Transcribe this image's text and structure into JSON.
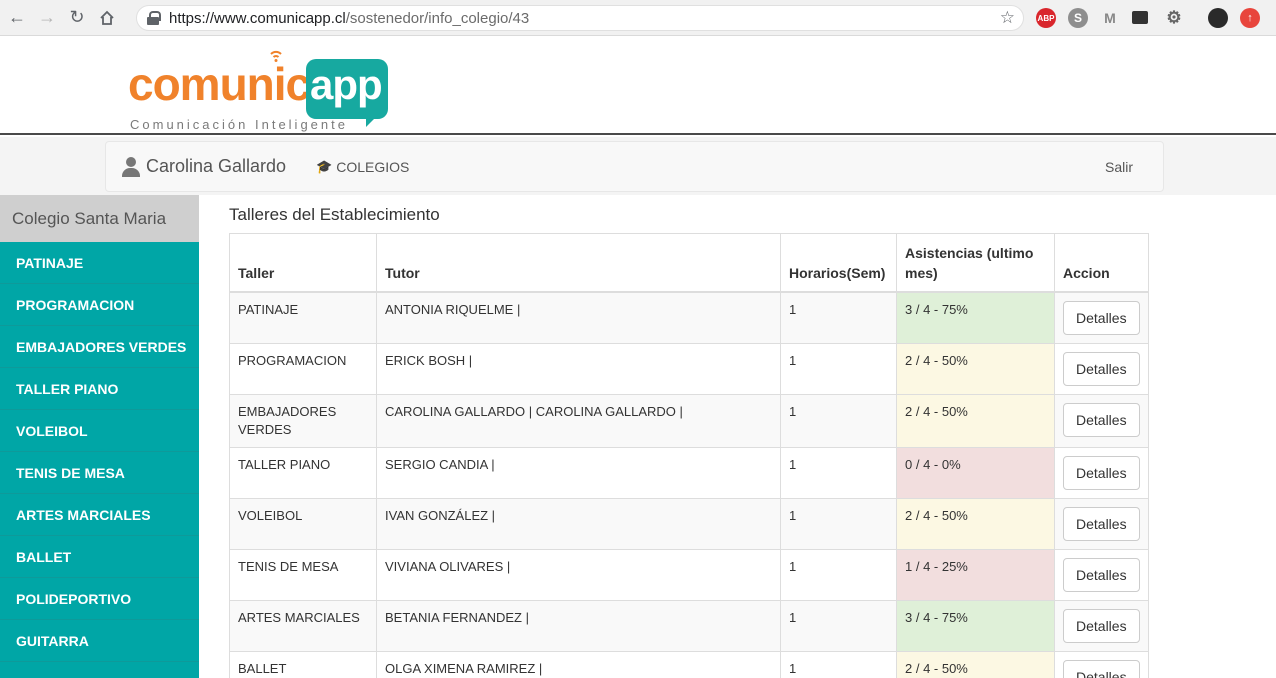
{
  "browser": {
    "url_host": "https://www.comunicapp.cl",
    "url_path": "/sostenedor/info_colegio/43",
    "extensions": [
      "abp-icon",
      "skype-icon",
      "gmail-icon",
      "terminal-icon",
      "gear-icon",
      "avatar",
      "upload-icon"
    ]
  },
  "logo": {
    "word": "comunic",
    "app": "app",
    "tagline": "Comunicación Inteligente",
    "colors": {
      "orange": "#f0822b",
      "teal": "#17a9a0"
    }
  },
  "navbar": {
    "user_name": "Carolina Gallardo",
    "colegios_label": "COLEGIOS",
    "logout_label": "Salir"
  },
  "sidebar": {
    "title": "Colegio Santa Maria",
    "items": [
      "PATINAJE",
      "PROGRAMACION",
      "EMBAJADORES VERDES",
      "TALLER PIANO",
      "VOLEIBOL",
      "TENIS DE MESA",
      "ARTES MARCIALES",
      "BALLET",
      "POLIDEPORTIVO",
      "GUITARRA"
    ]
  },
  "main": {
    "title": "Talleres del Establecimiento",
    "headers": [
      "Taller",
      "Tutor",
      "Horarios(Sem)",
      "Asistencias (ultimo mes)",
      "Accion"
    ],
    "action_label": "Detalles",
    "rows": [
      {
        "taller": "PATINAJE",
        "tutor": "ANTONIA RIQUELME |",
        "horarios": "1",
        "asistencia": "3 / 4 - 75%",
        "status": "success"
      },
      {
        "taller": "PROGRAMACION",
        "tutor": "ERICK BOSH |",
        "horarios": "1",
        "asistencia": "2 / 4 - 50%",
        "status": "warning"
      },
      {
        "taller": "EMBAJADORES VERDES",
        "tutor": "CAROLINA GALLARDO | CAROLINA GALLARDO |",
        "horarios": "1",
        "asistencia": "2 / 4 - 50%",
        "status": "warning"
      },
      {
        "taller": "TALLER PIANO",
        "tutor": "SERGIO CANDIA |",
        "horarios": "1",
        "asistencia": "0 / 4 - 0%",
        "status": "danger"
      },
      {
        "taller": "VOLEIBOL",
        "tutor": "IVAN GONZÁLEZ |",
        "horarios": "1",
        "asistencia": "2 / 4 - 50%",
        "status": "warning"
      },
      {
        "taller": "TENIS DE MESA",
        "tutor": "VIVIANA OLIVARES |",
        "horarios": "1",
        "asistencia": "1 / 4 - 25%",
        "status": "danger"
      },
      {
        "taller": "ARTES MARCIALES",
        "tutor": "BETANIA FERNANDEZ |",
        "horarios": "1",
        "asistencia": "3 / 4 - 75%",
        "status": "success"
      },
      {
        "taller": "BALLET",
        "tutor": "OLGA XIMENA RAMIREZ |",
        "horarios": "1",
        "asistencia": "2 / 4 - 50%",
        "status": "warning"
      }
    ]
  }
}
